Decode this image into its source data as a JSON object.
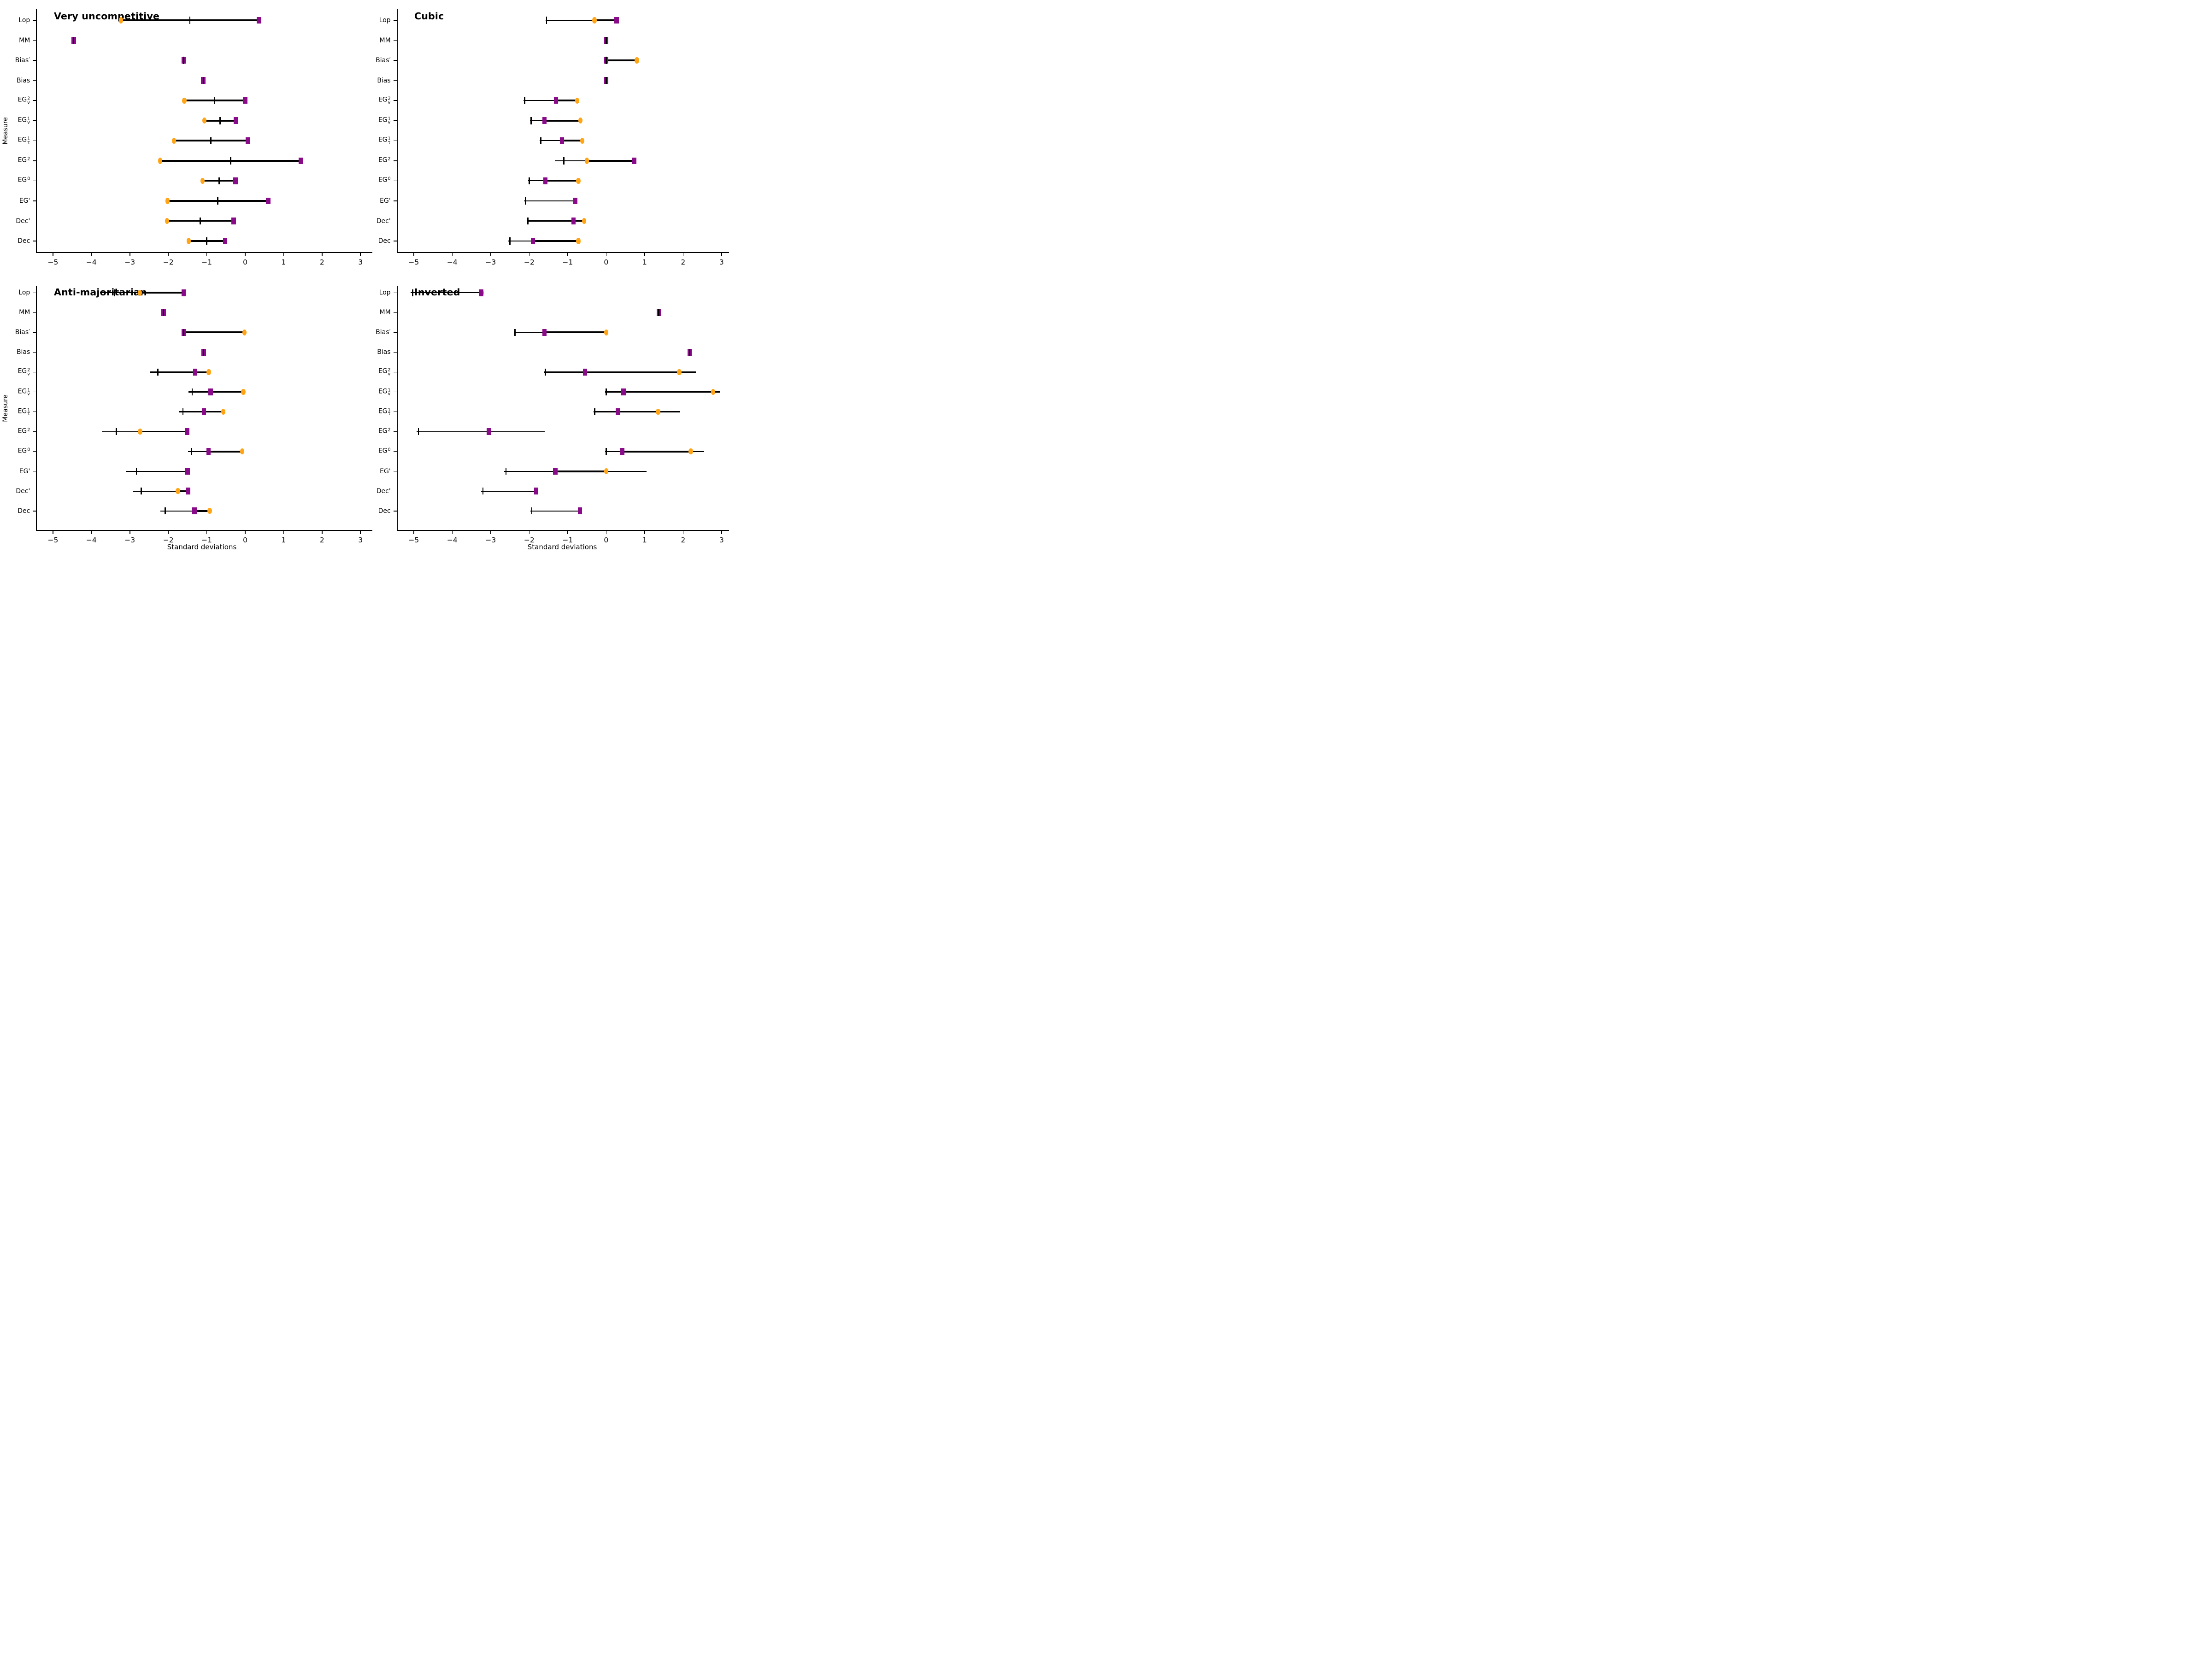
{
  "chart_data": {
    "type": "scatter",
    "description": "2x2 grid of horizontal dumbbell/error-bar plots; each row shows a thin range line with a left cap tick, a thick segment between an orange circle marker and a purple square marker",
    "xlabel": "Standard deviations",
    "ylabel": "Measure",
    "x_ticks": [
      -5,
      -4,
      -3,
      -2,
      -1,
      0,
      1,
      2,
      3
    ],
    "xlim": [
      -5.45,
      3.32
    ],
    "grid": "off",
    "legend": "none",
    "colors": {
      "circle": "#FFA516",
      "square": "#8A0B8A",
      "line": "#000000",
      "text": "#000000",
      "background": "#ffffff"
    },
    "categories": [
      {
        "base": "Lop"
      },
      {
        "base": "MM"
      },
      {
        "base": "Bias′"
      },
      {
        "base": "Bias"
      },
      {
        "base": "EG",
        "sup": "2",
        "sub": "v"
      },
      {
        "base": "EG",
        "sup": "1",
        "sub": "v"
      },
      {
        "base": "EG",
        "sup": "1",
        "sub": "τ"
      },
      {
        "base": "EG",
        "sup": "2",
        "sub": ""
      },
      {
        "base": "EG",
        "sup": "0",
        "sub": ""
      },
      {
        "base": "EG'"
      },
      {
        "base": "Dec'"
      },
      {
        "base": "Dec"
      }
    ],
    "panels": [
      {
        "title": "Very uncompetitive",
        "position": "top-left",
        "rows": [
          {
            "lo": -3.23,
            "tick": -1.44,
            "circle": -3.23,
            "square": 0.36,
            "hi": 0.36
          },
          {
            "lo": -4.46,
            "tick": -4.46,
            "circle": -4.46,
            "square": -4.46,
            "hi": -4.46
          },
          {
            "lo": -1.6,
            "tick": -1.6,
            "circle": -1.6,
            "square": -1.6,
            "hi": -1.6
          },
          {
            "lo": -1.09,
            "tick": -1.09,
            "circle": -1.09,
            "square": -1.09,
            "hi": -1.09
          },
          {
            "lo": -1.58,
            "tick": -0.79,
            "circle": -1.58,
            "square": 0.0,
            "hi": 0.0
          },
          {
            "lo": -1.06,
            "tick": -0.65,
            "circle": -1.06,
            "square": -0.24,
            "hi": -0.24
          },
          {
            "lo": -1.85,
            "tick": -0.89,
            "circle": -1.85,
            "square": 0.07,
            "hi": 0.07
          },
          {
            "lo": -2.21,
            "tick": -0.38,
            "circle": -2.21,
            "square": 1.45,
            "hi": 1.45
          },
          {
            "lo": -1.11,
            "tick": -0.68,
            "circle": -1.11,
            "square": -0.25,
            "hi": -0.25
          },
          {
            "lo": -2.02,
            "tick": -0.71,
            "circle": -2.02,
            "square": 0.6,
            "hi": 0.6
          },
          {
            "lo": -2.03,
            "tick": -1.17,
            "circle": -2.03,
            "square": -0.3,
            "hi": -0.3
          },
          {
            "lo": -1.47,
            "tick": -1.0,
            "circle": -1.47,
            "square": -0.52,
            "hi": -0.52
          }
        ]
      },
      {
        "title": "Cubic",
        "position": "top-right",
        "rows": [
          {
            "lo": -1.57,
            "tick": -1.55,
            "circle": -0.3,
            "square": 0.27,
            "hi": 0.27
          },
          {
            "lo": 0.0,
            "tick": 0.0,
            "circle": 0.0,
            "square": 0.0,
            "hi": 0.0
          },
          {
            "lo": 0.0,
            "tick": 0.0,
            "circle": 0.8,
            "square": 0.0,
            "hi": 0.8
          },
          {
            "lo": 0.0,
            "tick": 0.0,
            "circle": 0.0,
            "square": 0.0,
            "hi": 0.0
          },
          {
            "lo": -2.15,
            "tick": -2.12,
            "circle": -0.75,
            "square": -1.3,
            "hi": -0.75
          },
          {
            "lo": -1.98,
            "tick": -1.95,
            "circle": -0.67,
            "square": -1.6,
            "hi": -0.67
          },
          {
            "lo": -1.73,
            "tick": -1.7,
            "circle": -0.62,
            "square": -1.15,
            "hi": -0.62
          },
          {
            "lo": -1.33,
            "tick": -1.1,
            "circle": -0.5,
            "square": 0.73,
            "hi": 0.73
          },
          {
            "lo": -2.03,
            "tick": -2.0,
            "circle": -0.72,
            "square": -1.58,
            "hi": -0.72
          },
          {
            "lo": -2.13,
            "tick": -2.1,
            "circle": -0.8,
            "square": -0.8,
            "hi": -0.8
          },
          {
            "lo": -2.06,
            "tick": -2.03,
            "circle": -0.57,
            "square": -0.85,
            "hi": -0.57
          },
          {
            "lo": -2.55,
            "tick": -2.5,
            "circle": -0.72,
            "square": -1.9,
            "hi": -0.72
          }
        ]
      },
      {
        "title": "Anti-majoritarian",
        "position": "bottom-left",
        "rows": [
          {
            "lo": -3.78,
            "tick": -3.4,
            "circle": -2.74,
            "square": -1.6,
            "hi": -1.6
          },
          {
            "lo": -2.12,
            "tick": -2.12,
            "circle": -2.12,
            "square": -2.12,
            "hi": -2.12
          },
          {
            "lo": -1.62,
            "tick": -1.6,
            "circle": -0.02,
            "square": -1.6,
            "hi": -0.02
          },
          {
            "lo": -1.08,
            "tick": -1.08,
            "circle": -1.08,
            "square": -1.08,
            "hi": -1.08
          },
          {
            "lo": -2.47,
            "tick": -2.27,
            "circle": -0.95,
            "square": -1.3,
            "hi": -0.95
          },
          {
            "lo": -1.47,
            "tick": -1.38,
            "circle": -0.05,
            "square": -0.9,
            "hi": -0.05
          },
          {
            "lo": -1.73,
            "tick": -1.62,
            "circle": -0.57,
            "square": -1.07,
            "hi": -0.57
          },
          {
            "lo": -3.73,
            "tick": -3.35,
            "circle": -2.73,
            "square": -1.51,
            "hi": -1.51
          },
          {
            "lo": -1.49,
            "tick": -1.39,
            "circle": -0.08,
            "square": -0.95,
            "hi": -0.08
          },
          {
            "lo": -3.1,
            "tick": -2.83,
            "circle": -1.5,
            "square": -1.5,
            "hi": -1.5
          },
          {
            "lo": -2.92,
            "tick": -2.7,
            "circle": -1.75,
            "square": -1.48,
            "hi": -1.48
          },
          {
            "lo": -2.2,
            "tick": -2.08,
            "circle": -0.92,
            "square": -1.32,
            "hi": -0.92
          }
        ]
      },
      {
        "title": "Inverted",
        "position": "bottom-right",
        "rows": [
          {
            "lo": -5.08,
            "tick": -5.03,
            "circle": -3.24,
            "square": -3.24,
            "hi": -3.24
          },
          {
            "lo": 1.37,
            "tick": 1.37,
            "circle": 1.37,
            "square": 1.37,
            "hi": 1.37
          },
          {
            "lo": -2.4,
            "tick": -2.37,
            "circle": 0.0,
            "square": -1.6,
            "hi": 0.0
          },
          {
            "lo": 2.17,
            "tick": 2.17,
            "circle": 2.17,
            "square": 2.17,
            "hi": 2.17
          },
          {
            "lo": -1.62,
            "tick": -1.58,
            "circle": 1.9,
            "square": -0.55,
            "hi": 2.33
          },
          {
            "lo": -0.03,
            "tick": 0.0,
            "circle": 2.78,
            "square": 0.45,
            "hi": 2.95
          },
          {
            "lo": -0.33,
            "tick": -0.3,
            "circle": 1.35,
            "square": 0.3,
            "hi": 1.93
          },
          {
            "lo": -4.93,
            "tick": -4.88,
            "circle": -3.05,
            "square": -3.05,
            "hi": -1.6
          },
          {
            "lo": -0.03,
            "tick": 0.0,
            "circle": 2.2,
            "square": 0.42,
            "hi": 2.55
          },
          {
            "lo": -2.65,
            "tick": -2.6,
            "circle": 0.0,
            "square": -1.32,
            "hi": 1.05
          },
          {
            "lo": -3.25,
            "tick": -3.2,
            "circle": -1.82,
            "square": -1.82,
            "hi": -1.82
          },
          {
            "lo": -1.97,
            "tick": -1.93,
            "circle": -0.68,
            "square": -0.68,
            "hi": -0.68
          }
        ]
      }
    ]
  }
}
